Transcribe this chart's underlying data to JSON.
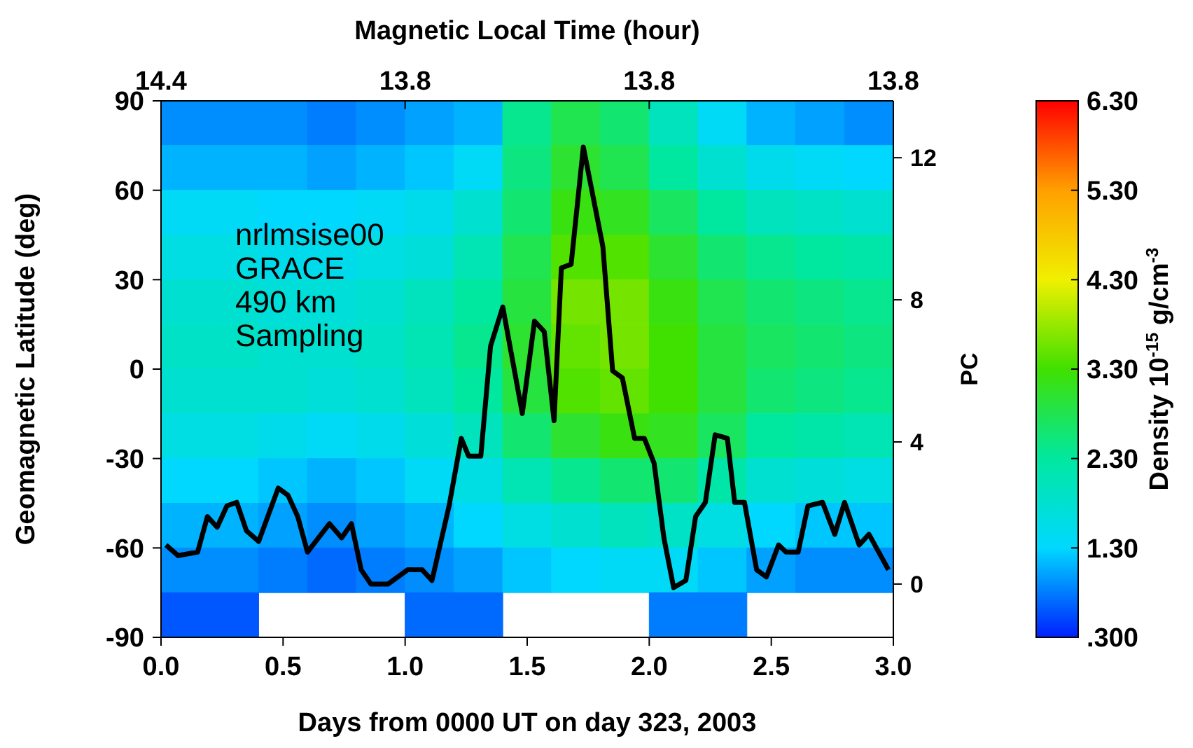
{
  "chart_data": {
    "type": "heatmap",
    "xlabel": "Days from 0000 UT on day 323, 2003",
    "ylabel": "Geomagnetic Latitude (deg)",
    "y2label": "PC",
    "x2label": "Magnetic Local Time (hour)",
    "clabel": "Density 10$^{-15}$ g/cm$^{-3}$",
    "annotations": [
      "nrlmsise00",
      "GRACE",
      "490 km",
      "Sampling",
      "14.4",
      "13.8",
      "13.8",
      "13.8"
    ],
    "xlim": [
      0,
      3
    ],
    "xticks": [
      {
        "value": 0,
        "label": "0.0"
      },
      0.5,
      {
        "value": 1,
        "label": "1.0"
      },
      1.5,
      {
        "value": 2,
        "label": "2.0"
      },
      2.5,
      {
        "value": 3,
        "label": "3.0"
      }
    ],
    "ylim": [
      -90,
      90
    ],
    "yticks": [
      -90,
      -60,
      -30,
      0,
      30,
      60,
      90
    ],
    "y2lim": [
      -1.5,
      13.6
    ],
    "y2ticks": [
      0,
      4,
      8,
      12
    ],
    "clim": [
      0.3,
      6.3
    ],
    "cticks": [
      {
        "value": 0.3,
        "label": ".300"
      },
      {
        "value": 1.3,
        "label": "1.30"
      },
      {
        "value": 2.3,
        "label": "2.30"
      },
      {
        "value": 3.3,
        "label": "3.30"
      },
      {
        "value": 4.3,
        "label": "4.30"
      },
      {
        "value": 5.3,
        "label": "5.30"
      },
      {
        "value": 6.3,
        "label": "6.30"
      }
    ],
    "x": [
      0.1,
      0.3,
      0.5,
      0.7,
      0.9,
      1.1,
      1.3,
      1.5,
      1.7,
      1.9,
      2.1,
      2.3,
      2.5,
      2.7,
      2.9
    ],
    "cells": [
      [
        0.9,
        0.9,
        0.9,
        0.8,
        0.9,
        1.0,
        1.1,
        2.4,
        2.8,
        2.6,
        2.0,
        1.4,
        1.1,
        1.0,
        0.9
      ],
      [
        1.1,
        1.1,
        1.1,
        1.0,
        1.1,
        1.2,
        1.4,
        2.5,
        3.0,
        2.8,
        2.3,
        1.8,
        1.5,
        1.4,
        1.3
      ],
      [
        1.4,
        1.4,
        1.3,
        1.3,
        1.4,
        1.5,
        1.8,
        2.6,
        3.2,
        3.1,
        2.7,
        2.3,
        2.0,
        1.9,
        1.8
      ],
      [
        1.6,
        1.6,
        1.5,
        1.5,
        1.6,
        1.7,
        2.1,
        2.8,
        3.4,
        3.4,
        3.0,
        2.6,
        2.4,
        2.3,
        2.2
      ],
      [
        1.8,
        1.8,
        1.7,
        1.7,
        1.8,
        2.0,
        2.3,
        2.9,
        3.6,
        3.6,
        3.2,
        2.8,
        2.6,
        2.5,
        2.4
      ],
      [
        1.9,
        1.9,
        1.8,
        1.8,
        1.9,
        2.1,
        2.4,
        3.0,
        3.5,
        3.6,
        3.3,
        2.9,
        2.7,
        2.6,
        2.5
      ],
      [
        1.8,
        1.8,
        1.8,
        1.7,
        1.8,
        2.0,
        2.3,
        2.9,
        3.4,
        3.5,
        3.3,
        2.9,
        2.6,
        2.5,
        2.4
      ],
      [
        1.6,
        1.6,
        1.5,
        1.4,
        1.5,
        1.7,
        2.0,
        2.6,
        3.0,
        3.2,
        3.1,
        2.7,
        2.3,
        2.2,
        2.1
      ],
      [
        1.3,
        1.3,
        1.2,
        1.1,
        1.2,
        1.4,
        1.6,
        2.1,
        2.4,
        2.6,
        2.6,
        2.2,
        1.8,
        1.7,
        1.6
      ],
      [
        1.1,
        1.1,
        1.0,
        0.9,
        1.0,
        1.1,
        1.3,
        1.6,
        1.8,
        2.0,
        1.9,
        1.6,
        1.3,
        1.2,
        1.2
      ],
      [
        0.9,
        0.9,
        0.8,
        0.7,
        0.8,
        0.9,
        1.0,
        1.2,
        1.3,
        1.4,
        1.4,
        1.2,
        1.0,
        0.9,
        0.9
      ],
      [
        0.6,
        0.6,
        null,
        null,
        null,
        0.7,
        0.7,
        null,
        null,
        null,
        0.8,
        0.8,
        null,
        null,
        null
      ]
    ],
    "series": [
      {
        "type": "line",
        "axis": "y2",
        "color": "#000000",
        "x": [
          0.02,
          0.07,
          0.15,
          0.19,
          0.23,
          0.27,
          0.31,
          0.35,
          0.4,
          0.48,
          0.52,
          0.56,
          0.6,
          0.69,
          0.74,
          0.78,
          0.82,
          0.86,
          0.93,
          1.01,
          1.07,
          1.11,
          1.18,
          1.23,
          1.26,
          1.31,
          1.35,
          1.4,
          1.48,
          1.53,
          1.57,
          1.61,
          1.64,
          1.68,
          1.73,
          1.81,
          1.85,
          1.89,
          1.94,
          1.98,
          2.02,
          2.06,
          2.1,
          2.15,
          2.19,
          2.23,
          2.27,
          2.32,
          2.35,
          2.39,
          2.44,
          2.48,
          2.53,
          2.56,
          2.61,
          2.65,
          2.71,
          2.76,
          2.8,
          2.86,
          2.9,
          2.98
        ],
        "values": [
          1.1,
          0.8,
          0.9,
          1.9,
          1.6,
          2.2,
          2.3,
          1.5,
          1.2,
          2.7,
          2.5,
          1.9,
          0.9,
          1.7,
          1.3,
          1.7,
          0.4,
          0.0,
          0.0,
          0.4,
          0.4,
          0.1,
          2.2,
          4.1,
          3.6,
          3.6,
          6.7,
          7.8,
          4.8,
          7.4,
          7.1,
          4.6,
          8.9,
          9.0,
          12.3,
          9.5,
          6.0,
          5.8,
          4.1,
          4.1,
          3.4,
          1.3,
          -0.1,
          0.1,
          1.9,
          2.3,
          4.2,
          4.1,
          2.3,
          2.3,
          0.4,
          0.2,
          1.1,
          0.9,
          0.9,
          2.2,
          2.3,
          1.4,
          2.3,
          1.1,
          1.4,
          0.4
        ]
      }
    ],
    "marker": "none",
    "line_style": "solid"
  }
}
